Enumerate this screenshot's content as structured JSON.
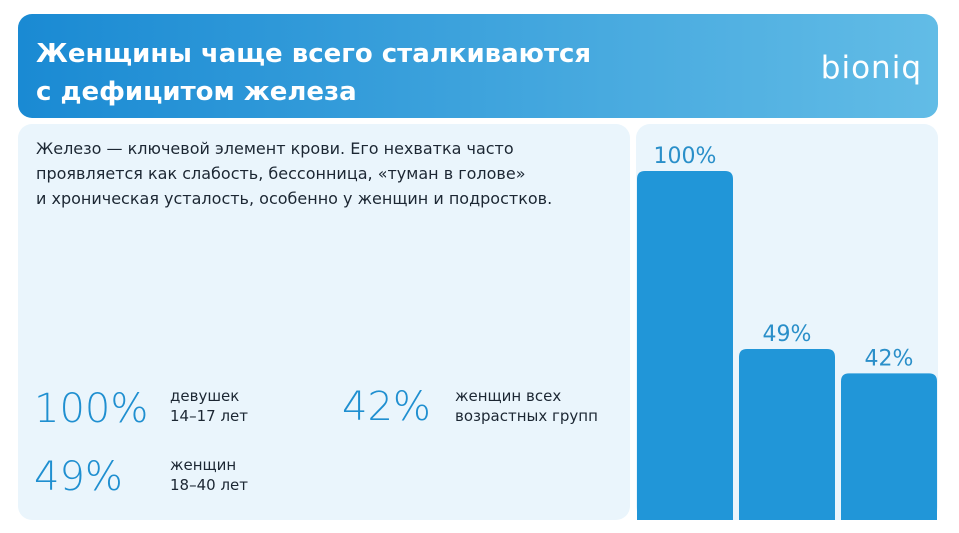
{
  "header": {
    "title_lines": [
      "Женщины чаще всего сталкиваются",
      "с дефицитом железа"
    ],
    "brand": "bioniq"
  },
  "description_lines": [
    "Железо — ключевой элемент крови. Его нехватка часто",
    "проявляется как слабость, бессонница, «туман в голове»",
    "и хроническая усталость, особенно у женщин и подростков."
  ],
  "stats": [
    {
      "value": "100%",
      "text_lines": [
        "девушек",
        "14–17 лет"
      ]
    },
    {
      "value": "49%",
      "text_lines": [
        "женщин",
        "18–40 лет"
      ]
    },
    {
      "value": "42%",
      "text_lines": [
        "женщин всех",
        "возрастных групп"
      ]
    }
  ],
  "chart_data": {
    "type": "bar",
    "values": [
      100,
      49,
      42
    ],
    "value_labels": [
      "100%",
      "49%",
      "42%"
    ],
    "color": "#2196d8",
    "ylim": [
      0,
      100
    ]
  }
}
